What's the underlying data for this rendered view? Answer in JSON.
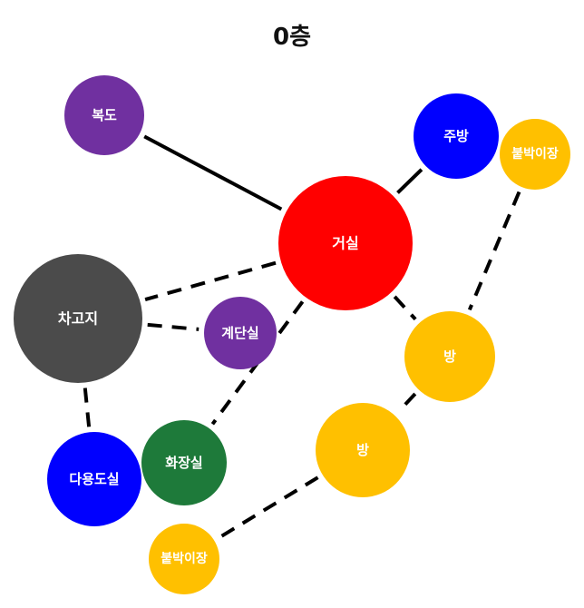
{
  "title": "0층",
  "nodes": [
    {
      "id": "hallway",
      "label": "복도",
      "color": "#7030A0"
    },
    {
      "id": "living",
      "label": "거실",
      "color": "#FF0000"
    },
    {
      "id": "kitchen",
      "label": "주방",
      "color": "#0000FF"
    },
    {
      "id": "closet_top",
      "label": "붙박이장",
      "color": "#FFC000"
    },
    {
      "id": "garage",
      "label": "차고지",
      "color": "#4B4B4B"
    },
    {
      "id": "stairs",
      "label": "계단실",
      "color": "#7030A0"
    },
    {
      "id": "room_right",
      "label": "방",
      "color": "#FFC000"
    },
    {
      "id": "room_center",
      "label": "방",
      "color": "#FFC000"
    },
    {
      "id": "bathroom",
      "label": "화장실",
      "color": "#1E7A3A"
    },
    {
      "id": "multiroom",
      "label": "다용도실",
      "color": "#0000FF"
    },
    {
      "id": "closet_bottom",
      "label": "붙박이장",
      "color": "#FFC000"
    }
  ],
  "edges": [
    {
      "from": "hallway",
      "to": "living",
      "style": "solid"
    },
    {
      "from": "kitchen",
      "to": "living",
      "style": "solid"
    },
    {
      "from": "living",
      "to": "garage",
      "style": "dashed"
    },
    {
      "from": "garage",
      "to": "stairs",
      "style": "dashed"
    },
    {
      "from": "garage",
      "to": "multiroom",
      "style": "dashed"
    },
    {
      "from": "living",
      "to": "bathroom",
      "style": "dashed"
    },
    {
      "from": "living",
      "to": "room_right",
      "style": "dashed"
    },
    {
      "from": "closet_top",
      "to": "room_right",
      "style": "dashed"
    },
    {
      "from": "room_right",
      "to": "room_center",
      "style": "dashed"
    },
    {
      "from": "room_center",
      "to": "closet_bottom",
      "style": "dashed"
    }
  ]
}
